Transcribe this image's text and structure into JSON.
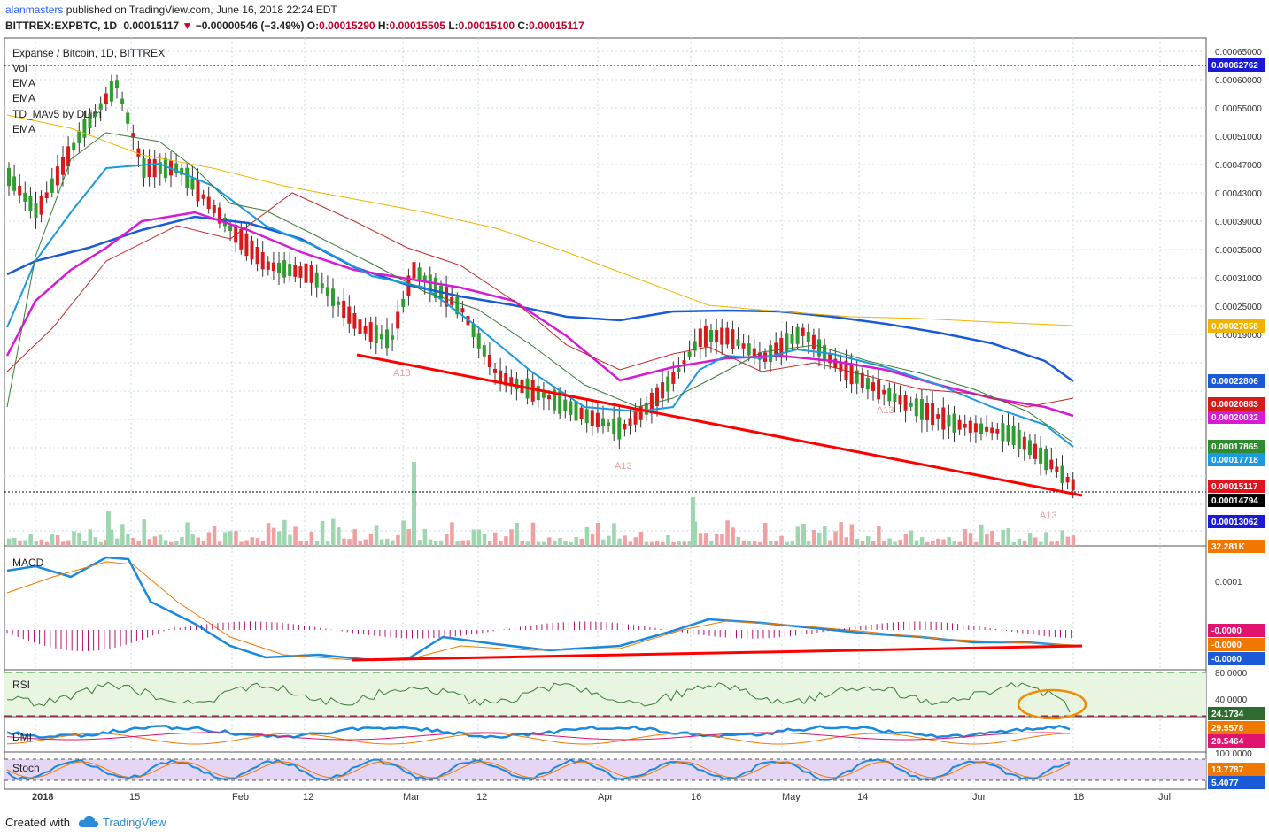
{
  "header": {
    "author": "alanmasters",
    "published_text": "published on TradingView.com, June 16, 2018 22:24 EDT",
    "symbol": "BITTREX:EXPBTC, 1D",
    "last": "0.00015117",
    "change": "−0.00000546 (−3.49%)",
    "o_label": "O:",
    "o": "0.00015290",
    "h_label": "H:",
    "h": "0.00015505",
    "l_label": "L:",
    "l": "0.00015100",
    "c_label": "C:",
    "c": "0.00015117"
  },
  "price_pane": {
    "title": "Expanse / Bitcoin, 1D, BITTREX",
    "indicators": [
      "Vol",
      "EMA",
      "EMA",
      "TD_MAv5 by DLim",
      "EMA"
    ],
    "y_ticks": [
      "0.00065000",
      "0.00060000",
      "0.00055000",
      "0.00051000",
      "0.00047000",
      "0.00043000",
      "0.00039000",
      "0.00035000",
      "0.00031000",
      "0.00025000",
      "0.00019000"
    ],
    "badges": [
      {
        "text": "0.00062762",
        "bg": "#1a1ad6"
      },
      {
        "text": "0.00027658",
        "bg": "#f0b400"
      },
      {
        "text": "0.00022806",
        "bg": "#1a5ad6"
      },
      {
        "text": "0.00020883",
        "bg": "#d61a1a"
      },
      {
        "text": "0.00020032",
        "bg": "#d61ad6"
      },
      {
        "text": "0.00017865",
        "bg": "#2e8b2e"
      },
      {
        "text": "0.00017718",
        "bg": "#1a9ae0"
      },
      {
        "text": "0.00015117",
        "bg": "#e0141e"
      },
      {
        "text": "0.00014794",
        "bg": "#000000"
      },
      {
        "text": "0.00013062",
        "bg": "#1a1ad6"
      },
      {
        "text": "32.281K",
        "bg": "#f07800"
      }
    ],
    "marker_labels": [
      "A13",
      "A13",
      "A13",
      "A13"
    ]
  },
  "macd_pane": {
    "title": "MACD",
    "y_ticks": [
      "0.0001"
    ],
    "badges": [
      {
        "text": "-0.0000",
        "bg": "#e0146e"
      },
      {
        "text": "-0.0000",
        "bg": "#f07800"
      },
      {
        "text": "-0.0000",
        "bg": "#1a5ad6"
      }
    ]
  },
  "rsi_pane": {
    "title": "RSI",
    "y_ticks": [
      "80.0000",
      "40.0000"
    ],
    "badges": [
      {
        "text": "24.1734",
        "bg": "#2e6b2e"
      }
    ]
  },
  "dmi_pane": {
    "title": "DMI",
    "badges": [
      {
        "text": "29.5578",
        "bg": "#f07800"
      },
      {
        "text": "20.5464",
        "bg": "#e0146e"
      }
    ]
  },
  "stoch_pane": {
    "title": "Stoch",
    "y_ticks": [
      "100.0000"
    ],
    "badges": [
      {
        "text": "13.7787",
        "bg": "#f07800"
      },
      {
        "text": "5.4077",
        "bg": "#1a5ad6"
      }
    ]
  },
  "x_axis": {
    "labels": [
      "2018",
      "15",
      "Feb",
      "12",
      "Mar",
      "12",
      "Apr",
      "16",
      "May",
      "14",
      "Jun",
      "18",
      "Jul"
    ]
  },
  "footer": {
    "created_with": "Created with",
    "brand": "TradingView"
  },
  "colors": {
    "up": "#2e9e2e",
    "down": "#d61a1a",
    "ema_fast": "#1a9ae0",
    "ema_mid": "#d61ad6",
    "ema_slow": "#1a5ad6",
    "ema_long": "#f0b400",
    "trendline": "#ff0000"
  }
}
